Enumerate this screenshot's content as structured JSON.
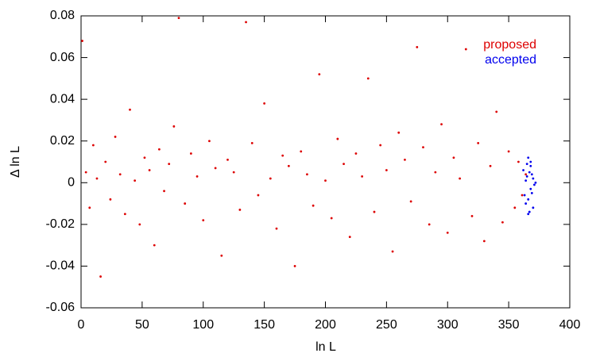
{
  "chart_data": {
    "type": "scatter",
    "xlabel": "ln L",
    "ylabel": "Δ ln L",
    "xlim": [
      0,
      400
    ],
    "ylim": [
      -0.06,
      0.08
    ],
    "xticks": [
      0,
      50,
      100,
      150,
      200,
      250,
      300,
      350,
      400
    ],
    "yticks": [
      -0.06,
      -0.04,
      -0.02,
      0,
      0.02,
      0.04,
      0.06,
      0.08
    ],
    "legend": "top-right",
    "series": [
      {
        "name": "proposed",
        "color": "#dd0000",
        "x": [
          1,
          4,
          7,
          10,
          13,
          16,
          20,
          24,
          28,
          32,
          36,
          40,
          44,
          48,
          52,
          56,
          60,
          64,
          68,
          72,
          76,
          80,
          85,
          90,
          95,
          100,
          105,
          110,
          115,
          120,
          125,
          130,
          135,
          140,
          145,
          150,
          155,
          160,
          165,
          170,
          175,
          180,
          185,
          190,
          195,
          200,
          205,
          210,
          215,
          220,
          225,
          230,
          235,
          240,
          245,
          250,
          255,
          260,
          265,
          270,
          275,
          280,
          285,
          290,
          295,
          300,
          305,
          310,
          315,
          320,
          325,
          330,
          335,
          340,
          345,
          350,
          355,
          358,
          361,
          364
        ],
        "values": [
          0.068,
          0.005,
          -0.012,
          0.018,
          0.002,
          -0.045,
          0.01,
          -0.008,
          0.022,
          0.004,
          -0.015,
          0.035,
          0.001,
          -0.02,
          0.012,
          0.006,
          -0.03,
          0.016,
          -0.004,
          0.009,
          0.027,
          0.079,
          -0.01,
          0.014,
          0.003,
          -0.018,
          0.02,
          0.007,
          -0.035,
          0.011,
          0.005,
          -0.013,
          0.077,
          0.019,
          -0.006,
          0.038,
          0.002,
          -0.022,
          0.013,
          0.008,
          -0.04,
          0.015,
          0.004,
          -0.011,
          0.052,
          0.001,
          -0.017,
          0.021,
          0.009,
          -0.026,
          0.014,
          0.003,
          0.05,
          -0.014,
          0.018,
          0.006,
          -0.033,
          0.024,
          0.011,
          -0.009,
          0.065,
          0.017,
          -0.02,
          0.005,
          0.028,
          -0.024,
          0.012,
          0.002,
          0.064,
          -0.016,
          0.019,
          -0.028,
          0.008,
          0.034,
          -0.019,
          0.015,
          -0.012,
          0.01,
          -0.006,
          0.004
        ]
      },
      {
        "name": "accepted",
        "color": "#0000ee",
        "x": [
          362,
          364,
          366,
          368,
          370,
          363,
          365,
          367,
          369,
          371,
          364,
          366,
          368,
          370,
          365,
          367,
          369,
          372,
          366,
          368
        ],
        "values": [
          0.006,
          -0.01,
          0.012,
          -0.003,
          0.002,
          -0.006,
          0.009,
          -0.014,
          0.004,
          -0.001,
          0.001,
          -0.008,
          0.01,
          -0.012,
          0.003,
          0.005,
          -0.005,
          0.0,
          -0.015,
          0.008
        ]
      }
    ]
  }
}
